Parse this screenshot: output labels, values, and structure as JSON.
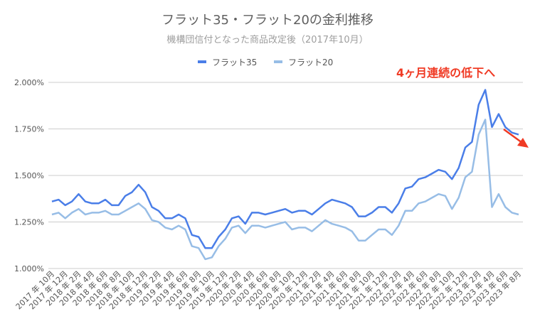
{
  "chart_data": {
    "type": "line",
    "title": "フラット35・フラット20の金利推移",
    "subtitle": "機構団信付となった商品改定後（2017年10月）",
    "annotation": "4ヶ月連続の低下へ",
    "annotation_color": "#f03a24",
    "legend_position": "top",
    "grid": true,
    "xlabel": "",
    "ylabel": "",
    "ylim": [
      1.0,
      2.0
    ],
    "y_ticks": [
      "1.000%",
      "1.250%",
      "1.500%",
      "1.750%",
      "2.000%"
    ],
    "x_tick_labels": [
      "2017 年 10月",
      "2017 年 12月",
      "2018 年 2月",
      "2018 年 4月",
      "2018 年 6月",
      "2018 年 8月",
      "2018 年 10月",
      "2018 年 12月",
      "2019 年 2月",
      "2019 年 4月",
      "2019 年 6月",
      "2019 年 8月",
      "2019 年 10月",
      "2019 年 12月",
      "2020 年 2月",
      "2020 年 4月",
      "2020 年 6月",
      "2020 年 8月",
      "2020 年 10月",
      "2020 年 12月",
      "2021 年 2月",
      "2021 年 4月",
      "2021 年 6月",
      "2021 年 8月",
      "2021 年 10月",
      "2021 年 12月",
      "2022 年 2月",
      "2022 年 4月",
      "2022 年 6月",
      "2022 年 8月",
      "2022 年 10月",
      "2022 年 12月",
      "2023 年 2月",
      "2023 年 4月",
      "2023 年 6月",
      "2023 年 8月"
    ],
    "x_range": [
      "2017-10",
      "2023-08"
    ],
    "series": [
      {
        "name": "フラット35",
        "color": "#4a7ee8",
        "values": [
          1.36,
          1.37,
          1.34,
          1.36,
          1.4,
          1.36,
          1.35,
          1.35,
          1.37,
          1.34,
          1.34,
          1.39,
          1.41,
          1.45,
          1.41,
          1.33,
          1.31,
          1.27,
          1.27,
          1.29,
          1.27,
          1.18,
          1.17,
          1.11,
          1.11,
          1.17,
          1.21,
          1.27,
          1.28,
          1.24,
          1.3,
          1.3,
          1.29,
          1.3,
          1.31,
          1.32,
          1.3,
          1.31,
          1.31,
          1.29,
          1.32,
          1.35,
          1.37,
          1.36,
          1.35,
          1.33,
          1.28,
          1.28,
          1.3,
          1.33,
          1.33,
          1.3,
          1.35,
          1.43,
          1.44,
          1.48,
          1.49,
          1.51,
          1.53,
          1.52,
          1.48,
          1.54,
          1.65,
          1.68,
          1.88,
          1.96,
          1.76,
          1.83,
          1.76,
          1.73,
          1.72
        ]
      },
      {
        "name": "フラット20",
        "color": "#97bde6",
        "values": [
          1.29,
          1.3,
          1.27,
          1.3,
          1.32,
          1.29,
          1.3,
          1.3,
          1.31,
          1.29,
          1.29,
          1.31,
          1.33,
          1.35,
          1.32,
          1.26,
          1.25,
          1.22,
          1.21,
          1.23,
          1.21,
          1.12,
          1.11,
          1.05,
          1.06,
          1.12,
          1.16,
          1.22,
          1.23,
          1.19,
          1.23,
          1.23,
          1.22,
          1.23,
          1.24,
          1.25,
          1.21,
          1.22,
          1.22,
          1.2,
          1.23,
          1.26,
          1.24,
          1.23,
          1.22,
          1.2,
          1.15,
          1.15,
          1.18,
          1.21,
          1.21,
          1.18,
          1.23,
          1.31,
          1.31,
          1.35,
          1.36,
          1.38,
          1.4,
          1.39,
          1.32,
          1.38,
          1.49,
          1.52,
          1.72,
          1.8,
          1.33,
          1.4,
          1.33,
          1.3,
          1.29
        ]
      }
    ]
  }
}
